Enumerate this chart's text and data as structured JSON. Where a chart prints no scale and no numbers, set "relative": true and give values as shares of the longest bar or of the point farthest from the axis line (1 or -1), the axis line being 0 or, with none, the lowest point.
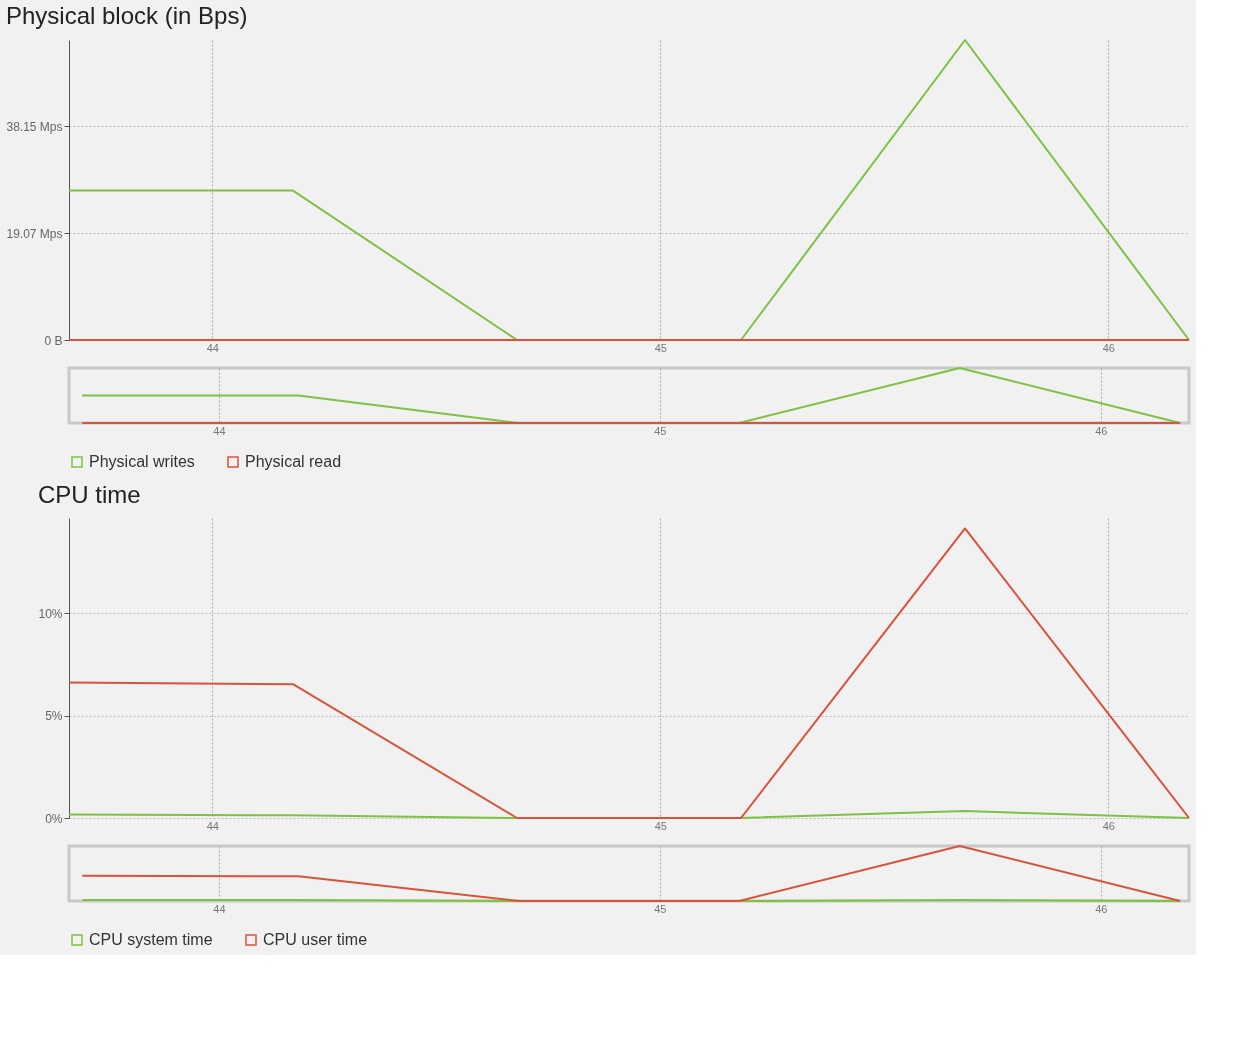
{
  "chart_data": [
    {
      "type": "line",
      "title": "Physical block (in Bps)",
      "x": [
        43.68,
        44.18,
        44.68,
        45.18,
        45.68,
        46.18
      ],
      "xlim": [
        43.68,
        46.18
      ],
      "xticks": [
        44,
        45,
        46
      ],
      "ylim": [
        0,
        53.6
      ],
      "yticks": [
        {
          "value": 0,
          "label": "0 B"
        },
        {
          "value": 19.07,
          "label": "19.07 Mps"
        },
        {
          "value": 38.15,
          "label": "38.15 Mps"
        }
      ],
      "grid": true,
      "legend": false,
      "series": [
        {
          "color": "#7dc242",
          "values": [
            26.7,
            26.7,
            0,
            0,
            53.6,
            0
          ]
        },
        {
          "color": "#d9533b",
          "values": [
            0,
            0,
            0,
            0,
            0,
            0
          ]
        }
      ]
    },
    {
      "type": "line",
      "relative": true,
      "x": [
        43.69,
        44.18,
        44.68,
        45.18,
        45.68,
        46.18
      ],
      "xlim": [
        43.66,
        46.2
      ],
      "xticks": [
        44,
        45,
        46
      ],
      "tick_labels": "x",
      "grid": "x",
      "legend": "bottom left",
      "series": [
        {
          "name": "Physical writes",
          "color": "#7dc242",
          "values": [
            0.5,
            0.5,
            0,
            0,
            1,
            0
          ]
        },
        {
          "name": "Physical read",
          "color": "#d9533b",
          "values": [
            0,
            0,
            0,
            0,
            0,
            0
          ]
        }
      ]
    },
    {
      "type": "line",
      "title": "CPU time",
      "x": [
        43.68,
        44.18,
        44.68,
        45.18,
        45.68,
        46.18
      ],
      "xlim": [
        43.68,
        46.18
      ],
      "xticks": [
        44,
        45,
        46
      ],
      "ylim": [
        0,
        14.66
      ],
      "yticks": [
        {
          "value": 0,
          "label": "0%"
        },
        {
          "value": 5,
          "label": "5%"
        },
        {
          "value": 10,
          "label": "10%"
        }
      ],
      "grid": true,
      "legend": false,
      "series": [
        {
          "color": "#7dc242",
          "values": [
            0.17,
            0.13,
            0,
            0,
            0.34,
            0
          ]
        },
        {
          "color": "#d9533b",
          "values": [
            6.62,
            6.54,
            0,
            0,
            14.15,
            0
          ]
        }
      ]
    },
    {
      "type": "line",
      "relative": true,
      "x": [
        43.69,
        44.18,
        44.68,
        45.18,
        45.68,
        46.18
      ],
      "xlim": [
        43.66,
        46.2
      ],
      "xticks": [
        44,
        45,
        46
      ],
      "tick_labels": "x",
      "grid": "x",
      "legend": "bottom left",
      "series": [
        {
          "name": "CPU system time",
          "color": "#7dc242",
          "values": [
            0.02,
            0.02,
            0,
            0,
            0.02,
            0
          ]
        },
        {
          "name": "CPU user time",
          "color": "#d9533b",
          "values": [
            0.46,
            0.45,
            0,
            0,
            1,
            0
          ]
        }
      ]
    }
  ]
}
